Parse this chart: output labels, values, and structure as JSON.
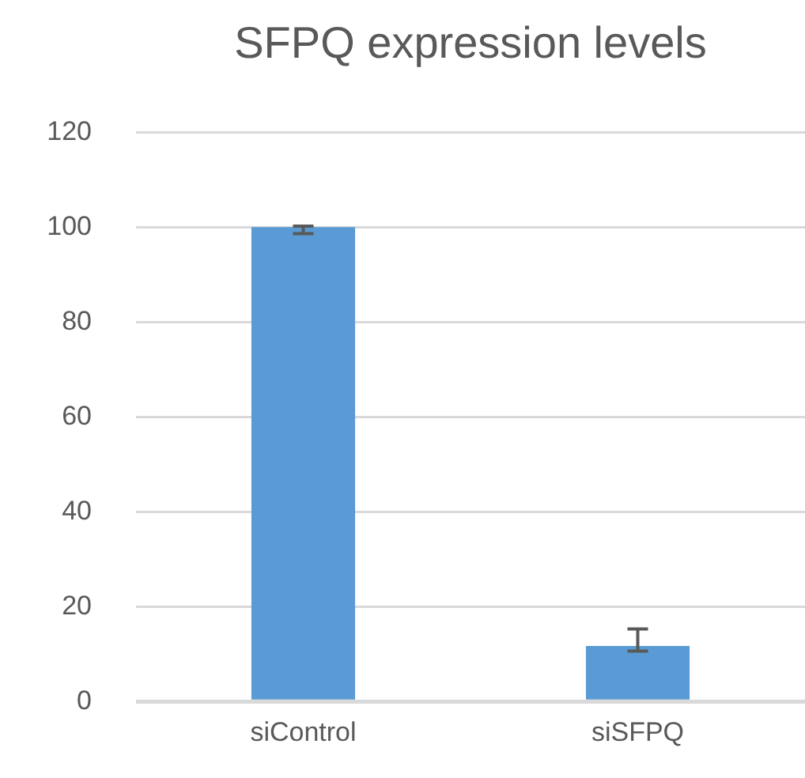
{
  "chart_data": {
    "type": "bar",
    "title": "SFPQ expression levels",
    "categories": [
      "siControl",
      "siSFPQ"
    ],
    "values": [
      100,
      11.7
    ],
    "color": "#5b9bd5",
    "errors": [
      [
        98.6,
        100.2
      ],
      [
        10.6,
        15.3
      ]
    ],
    "ylim": [
      0,
      120
    ],
    "yticks": [
      0,
      20,
      40,
      60,
      80,
      100,
      120
    ],
    "grid": "y",
    "legend": false
  }
}
